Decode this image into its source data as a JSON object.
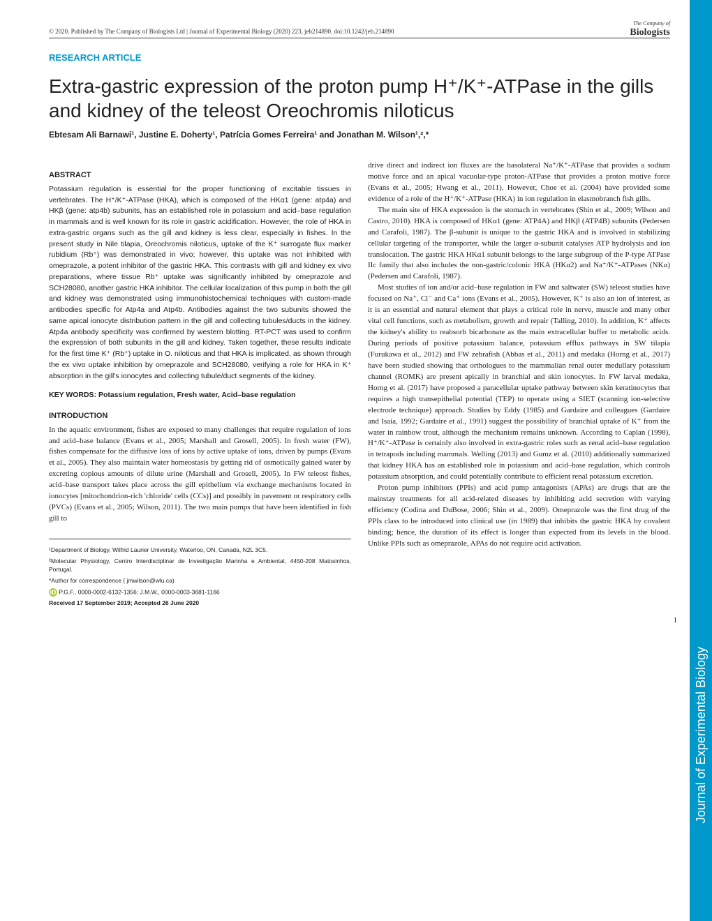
{
  "header": {
    "copyright": "© 2020. Published by The Company of Biologists Ltd | Journal of Experimental Biology (2020) 223, jeb214890. doi:10.1242/jeb.214890"
  },
  "logo": {
    "company": "The Company of",
    "biologists": "Biologists"
  },
  "article_type": "RESEARCH ARTICLE",
  "title": "Extra-gastric expression of the proton pump H⁺/K⁺-ATPase in the gills and kidney of the teleost Oreochromis niloticus",
  "authors": "Ebtesam Ali Barnawi¹, Justine E. Doherty¹, Patrícia Gomes Ferreira¹ and Jonathan M. Wilson¹,²,*",
  "abstract_head": "ABSTRACT",
  "abstract": "Potassium regulation is essential for the proper functioning of excitable tissues in vertebrates. The H⁺/K⁺-ATPase (HKA), which is composed of the HKα1 (gene: atp4a) and HKβ (gene: atp4b) subunits, has an established role in potassium and acid–base regulation in mammals and is well known for its role in gastric acidification. However, the role of HKA in extra-gastric organs such as the gill and kidney is less clear, especially in fishes. In the present study in Nile tilapia, Oreochromis niloticus, uptake of the K⁺ surrogate flux marker rubidium (Rb⁺) was demonstrated in vivo; however, this uptake was not inhibited with omeprazole, a potent inhibitor of the gastric HKA. This contrasts with gill and kidney ex vivo preparations, where tissue Rb⁺ uptake was significantly inhibited by omeprazole and SCH28080, another gastric HKA inhibitor. The cellular localization of this pump in both the gill and kidney was demonstrated using immunohistochemical techniques with custom-made antibodies specific for Atp4a and Atp4b. Antibodies against the two subunits showed the same apical ionocyte distribution pattern in the gill and collecting tubules/ducts in the kidney. Atp4a antibody specificity was confirmed by western blotting. RT-PCT was used to confirm the expression of both subunits in the gill and kidney. Taken together, these results indicate for the first time K⁺ (Rb⁺) uptake in O. niloticus and that HKA is implicated, as shown through the ex vivo uptake inhibition by omeprazole and SCH28080, verifying a role for HKA in K⁺ absorption in the gill's ionocytes and collecting tubule/duct segments of the kidney.",
  "keywords_label": "KEY WORDS: Potassium regulation, Fresh water, Acid–base regulation",
  "intro_head": "INTRODUCTION",
  "intro_p1": "In the aquatic environment, fishes are exposed to many challenges that require regulation of ions and acid–base balance (Evans et al., 2005; Marshall and Grosell, 2005). In fresh water (FW), fishes compensate for the diffusive loss of ions by active uptake of ions, driven by pumps (Evans et al., 2005). They also maintain water homeostasis by getting rid of osmotically gained water by excreting copious amounts of dilute urine (Marshall and Grosell, 2005). In FW teleost fishes, acid–base transport takes place across the gill epithelium via exchange mechanisms located in ionocytes [mitochondrion-rich 'chloride' cells (CCs)] and possibly in pavement or respiratory cells (PVCs) (Evans et al., 2005; Wilson, 2011). The two main pumps that have been identified in fish gill to",
  "col2_p1": "drive direct and indirect ion fluxes are the basolateral Na⁺/K⁺-ATPase that provides a sodium motive force and an apical vacuolar-type proton-ATPase that provides a proton motive force (Evans et al., 2005; Hwang et al., 2011). However, Choe et al. (2004) have provided some evidence of a role of the H⁺/K⁺-ATPase (HKA) in ion regulation in elasmobranch fish gills.",
  "col2_p2": "The main site of HKA expression is the stomach in vertebrates (Shin et al., 2009; Wilson and Castro, 2010). HKA is composed of HKα1 (gene: ATP4A) and HKβ (ATP4B) subunits (Pedersen and Carafoli, 1987). The β-subunit is unique to the gastric HKA and is involved in stabilizing cellular targeting of the transporter, while the larger α-subunit catalyses ATP hydrolysis and ion translocation. The gastric HKA HKα1 subunit belongs to the large subgroup of the P-type ATPase IIc family that also includes the non-gastric/colonic HKA (HKα2) and Na⁺/K⁺-ATPases (NKα) (Pedersen and Carafoli, 1987).",
  "col2_p3": "Most studies of ion and/or acid–base regulation in FW and saltwater (SW) teleost studies have focused on Na⁺, Cl⁻ and Ca⁺ ions (Evans et al., 2005). However, K⁺ is also an ion of interest, as it is an essential and natural element that plays a critical role in nerve, muscle and many other vital cell functions, such as metabolism, growth and repair (Talling, 2010). In addition, K⁺ affects the kidney's ability to reabsorb bicarbonate as the main extracellular buffer to metabolic acids. During periods of positive potassium balance, potassium efflux pathways in SW tilapia (Furukawa et al., 2012) and FW zebrafish (Abbas et al., 2011) and medaka (Horng et al., 2017) have been studied showing that orthologues to the mammalian renal outer medullary potassium channel (ROMK) are present apically in branchial and skin ionocytes. In FW larval medaka, Horng et al. (2017) have proposed a paracellular uptake pathway between skin keratinocytes that requires a high transepithelial potential (TEP) to operate using a SIET (scanning ion-selective electrode technique) approach. Studies by Eddy (1985) and Gardaire and colleagues (Gardaire and Isaia, 1992; Gardaire et al., 1991) suggest the possibility of branchial uptake of K⁺ from the water in rainbow trout, although the mechanism remains unknown. According to Caplan (1998), H⁺/K⁺-ATPase is certainly also involved in extra-gastric roles such as renal acid–base regulation in tetrapods including mammals. Welling (2013) and Gumz et al. (2010) additionally summarized that kidney HKA has an established role in potassium and acid–base regulation, which controls potassium absorption, and could potentially contribute to efficient renal potassium excretion.",
  "col2_p4": "Proton pump inhibitors (PPIs) and acid pump antagonists (APAs) are drugs that are the mainstay treatments for all acid-related diseases by inhibiting acid secretion with varying efficiency (Codina and DuBose, 2006; Shin et al., 2009). Omeprazole was the first drug of the PPIs class to be introduced into clinical use (in 1989) that inhibits the gastric HKA by covalent binding; hence, the duration of its effect is longer than expected from its levels in the blood. Unlike PPIs such as omeprazole, APAs do not require acid activation.",
  "footnotes": {
    "affil1": "¹Department of Biology, Wilfrid Laurier University, Waterloo, ON, Canada, N2L 3C5.",
    "affil2": "²Molecular Physiology, Centro Interdisciplinar de Investigação Marinha e Ambiental, 4450-208 Matosinhos, Portugal.",
    "correspondence": "*Author for correspondence ( jmwilson@wlu.ca)",
    "orcid": "P.G.F., 0000-0002-6132-1356; J.M.W., 0000-0003-3681-1166",
    "dates": "Received 17 September 2019; Accepted 26 June 2020"
  },
  "sidebar": "Journal of Experimental Biology",
  "page_number": "1",
  "colors": {
    "accent_blue": "#0099cc",
    "text": "#222222",
    "orcid_green": "#a6ce39"
  }
}
